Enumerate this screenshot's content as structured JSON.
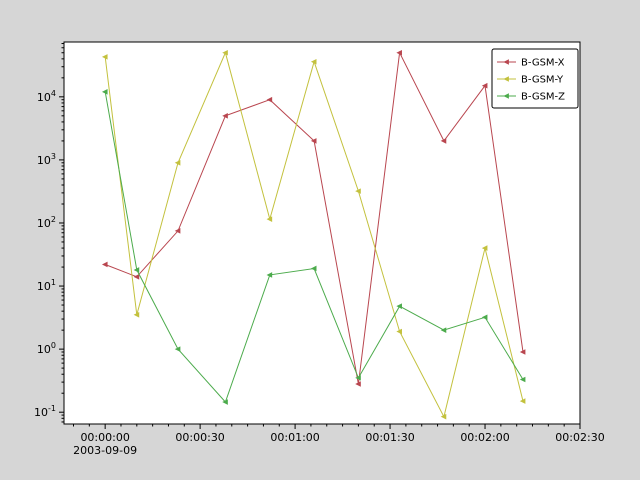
{
  "figure": {
    "background": "#d6d6d6",
    "plot_background": "#ffffff",
    "axis_color": "#000000",
    "text_color": "#000000"
  },
  "chart_data": {
    "type": "line",
    "title": "",
    "xlabel": "",
    "ylabel": "",
    "yscale": "log",
    "grid": false,
    "marker": "triangle-left",
    "xlim_seconds": [
      -13,
      150
    ],
    "ylim": [
      0.065,
      74000
    ],
    "x_seconds": [
      0,
      10,
      23,
      38,
      52,
      66,
      80,
      93,
      107,
      120,
      132
    ],
    "series": [
      {
        "name": "B-GSM-X",
        "color": "#b9464f",
        "values": [
          22,
          14,
          75,
          5000,
          9000,
          2000,
          0.28,
          50000,
          2000,
          15000,
          0.9
        ]
      },
      {
        "name": "B-GSM-Y",
        "color": "#c3c13d",
        "values": [
          43000,
          3.5,
          900,
          50000,
          115,
          36000,
          320,
          1.9,
          0.085,
          40,
          0.15
        ]
      },
      {
        "name": "B-GSM-Z",
        "color": "#4cab4c",
        "values": [
          12000,
          18,
          1.0,
          0.145,
          15,
          19,
          0.35,
          4.8,
          2.0,
          3.2,
          0.33
        ]
      }
    ],
    "x_major_ticks": [
      {
        "seconds": 0,
        "label": "00:00:00"
      },
      {
        "seconds": 30,
        "label": "00:00:30"
      },
      {
        "seconds": 60,
        "label": "00:01:00"
      },
      {
        "seconds": 90,
        "label": "00:01:30"
      },
      {
        "seconds": 120,
        "label": "00:02:00"
      },
      {
        "seconds": 150,
        "label": "00:02:30"
      }
    ],
    "x_minor_step_seconds": 5,
    "x_start_date_label": "2003-09-09",
    "y_major_tick_exponents": [
      -1,
      0,
      1,
      2,
      3,
      4
    ],
    "legend": {
      "position": "top-right",
      "entries": [
        "B-GSM-X",
        "B-GSM-Y",
        "B-GSM-Z"
      ]
    }
  }
}
